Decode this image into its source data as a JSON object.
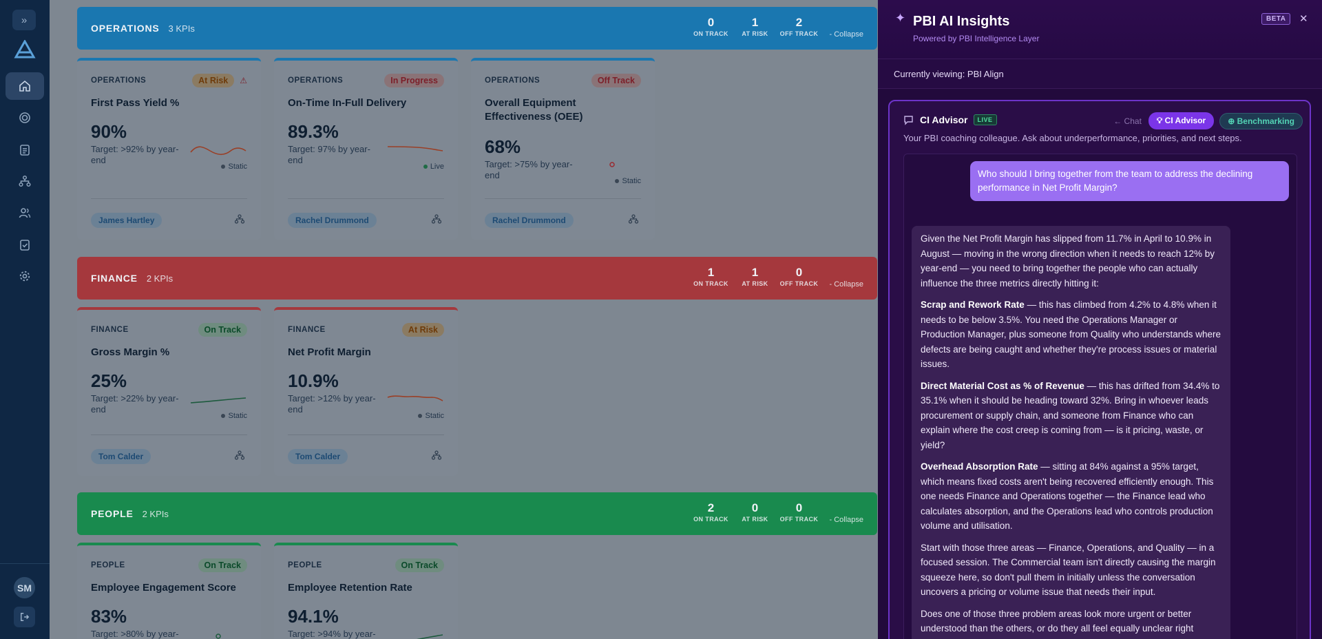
{
  "rail": {
    "items": [
      "home",
      "goals",
      "reports",
      "hierarchy",
      "people",
      "tasks",
      "settings"
    ],
    "avatar_initials": "SM"
  },
  "colors": {
    "operations": "#1577b1",
    "finance": "#a9383d",
    "people": "#198a4e",
    "on_track": "#198a4e",
    "at_risk": "#c4791b",
    "off_track": "#a9383d",
    "accent": "#7b35e8"
  },
  "groups": [
    {
      "title": "OPERATIONS",
      "count": "3 KPIs",
      "on_track": "0",
      "at_risk": "1",
      "off_track": "2",
      "on_label": "ON TRACK",
      "risk_label": "AT RISK",
      "off_label": "OFF TRACK",
      "collapse": "- Collapse",
      "cards": [
        {
          "category": "OPERATIONS",
          "status": "At Risk",
          "name": "First Pass Yield %",
          "value": "90%",
          "target": "Target: >92% by year-end",
          "source": "Static",
          "owner": "James Hartley"
        },
        {
          "category": "OPERATIONS",
          "status": "In Progress",
          "name": "On-Time In-Full Delivery",
          "value": "89.3%",
          "target": "Target: 97% by year-end",
          "source": "Live",
          "owner": "Rachel Drummond"
        },
        {
          "category": "OPERATIONS",
          "status": "Off Track",
          "name": "Overall Equipment Effectiveness (OEE)",
          "value": "68%",
          "target": "Target: >75% by year-end",
          "source": "Static",
          "owner": "Rachel Drummond"
        }
      ]
    },
    {
      "title": "FINANCE",
      "count": "2 KPIs",
      "on_track": "1",
      "at_risk": "1",
      "off_track": "0",
      "on_label": "ON TRACK",
      "risk_label": "AT RISK",
      "off_label": "OFF TRACK",
      "collapse": "- Collapse",
      "cards": [
        {
          "category": "FINANCE",
          "status": "On Track",
          "name": "Gross Margin %",
          "value": "25%",
          "target": "Target: >22% by year-end",
          "source": "Static",
          "owner": "Tom Calder"
        },
        {
          "category": "FINANCE",
          "status": "At Risk",
          "name": "Net Profit Margin",
          "value": "10.9%",
          "target": "Target: >12% by year-end",
          "source": "Static",
          "owner": "Tom Calder"
        }
      ]
    },
    {
      "title": "PEOPLE",
      "count": "2 KPIs",
      "on_track": "2",
      "at_risk": "0",
      "off_track": "0",
      "on_label": "ON TRACK",
      "risk_label": "AT RISK",
      "off_label": "OFF TRACK",
      "collapse": "- Collapse",
      "cards": [
        {
          "category": "PEOPLE",
          "status": "On Track",
          "name": "Employee Engagement Score",
          "value": "83%",
          "target": "Target: >80% by year-"
        },
        {
          "category": "PEOPLE",
          "status": "On Track",
          "name": "Employee Retention Rate",
          "value": "94.1%",
          "target": "Target: >94% by year-"
        }
      ]
    }
  ],
  "panel": {
    "title": "PBI AI Insights",
    "subtitle": "Powered by PBI Intelligence Layer",
    "beta": "BETA",
    "viewing": "Currently viewing: PBI Align",
    "advisor_name": "CI Advisor",
    "live": "LIVE",
    "tab_chat": "← Chat",
    "tab_advisor": "CI Advisor",
    "tab_bench": "Benchmarking",
    "description": "Your PBI coaching colleague. Ask about underperformance, priorities, and next steps.",
    "user_message": "Who should I bring together from the team to address the declining performance in Net Profit Margin?",
    "reply": {
      "intro": "Given the Net Profit Margin has slipped from 11.7% in April to 10.9% in August — moving in the wrong direction when it needs to reach 12% by year-end — you need to bring together the people who can actually influence the three metrics directly hitting it:",
      "p1_bold": "Scrap and Rework Rate",
      "p1_text": " — this has climbed from 4.2% to 4.8% when it needs to be below 3.5%. You need the Operations Manager or Production Manager, plus someone from Quality who understands where defects are being caught and whether they're process issues or material issues.",
      "p2_bold": "Direct Material Cost as % of Revenue",
      "p2_text": " — this has drifted from 34.4% to 35.1% when it should be heading toward 32%. Bring in whoever leads procurement or supply chain, and someone from Finance who can explain where the cost creep is coming from — is it pricing, waste, or yield?",
      "p3_bold": "Overhead Absorption Rate",
      "p3_text": " — sitting at 84% against a 95% target, which means fixed costs aren't being recovered efficiently enough. This one needs Finance and Operations together — the Finance lead who calculates absorption, and the Operations lead who controls production volume and utilisation.",
      "p4": "Start with those three areas — Finance, Operations, and Quality — in a focused session. The Commercial team isn't directly causing the margin squeeze here, so don't pull them in initially unless the conversation uncovers a pricing or volume issue that needs their input.",
      "p5": "Does one of those three problem areas look more urgent or better understood than the others, or do they all feel equally unclear right"
    }
  }
}
